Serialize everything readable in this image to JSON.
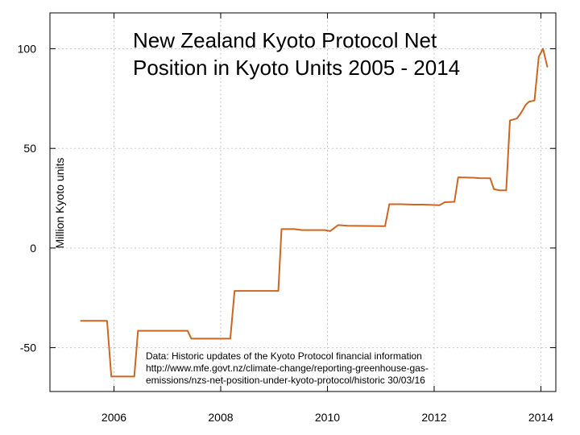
{
  "chart_data": {
    "type": "line",
    "title_lines": [
      "New Zealand Kyoto Protocol Net",
      "Position in Kyoto Units 2005 - 2014"
    ],
    "xlabel": "",
    "ylabel": "Million Kyoto units",
    "xlim": [
      2004.8,
      2014.28
    ],
    "ylim": [
      -72,
      118
    ],
    "x_ticks": [
      2006,
      2008,
      2010,
      2012,
      2014
    ],
    "x_tick_labels": [
      "2006",
      "2008",
      "2010",
      "2012",
      "2014"
    ],
    "y_ticks": [
      -50,
      0,
      50,
      100
    ],
    "y_tick_labels": [
      "-50",
      "0",
      "50",
      "100"
    ],
    "grid": true,
    "annotation_lines": [
      "Data: Historic updates of the Kyoto Protocol financial information",
      "http://www.mfe.govt.nz/climate-change/reporting-greenhouse-gas-",
      "emissions/nzs-net-position-under-kyoto-protocol/historic 30/03/16"
    ],
    "series": [
      {
        "color": "#cc6622",
        "x": [
          2005.38,
          2005.87,
          2005.95,
          2006.38,
          2006.45,
          2007.38,
          2007.45,
          2008.18,
          2008.26,
          2009.08,
          2009.14,
          2009.38,
          2009.52,
          2009.95,
          2010.05,
          2010.2,
          2010.38,
          2011.08,
          2011.16,
          2011.38,
          2011.62,
          2011.8,
          2012.1,
          2012.2,
          2012.38,
          2012.45,
          2012.75,
          2012.85,
          2013.05,
          2013.12,
          2013.22,
          2013.35,
          2013.42,
          2013.55,
          2013.62,
          2013.72,
          2013.78,
          2013.88,
          2013.96,
          2014.04,
          2014.12
        ],
        "y": [
          -36.5,
          -36.5,
          -64.5,
          -64.5,
          -41.5,
          -41.5,
          -45.5,
          -45.5,
          -21.5,
          -21.5,
          9.5,
          9.5,
          9.0,
          9.0,
          8.5,
          11.5,
          11.2,
          11.0,
          22.0,
          22.0,
          21.8,
          21.8,
          21.5,
          23.0,
          23.2,
          35.5,
          35.3,
          35.1,
          35.0,
          29.5,
          29.0,
          29.0,
          64.0,
          65.0,
          67.5,
          72.0,
          73.5,
          74.0,
          96.0,
          100.0,
          91.0
        ]
      }
    ]
  }
}
